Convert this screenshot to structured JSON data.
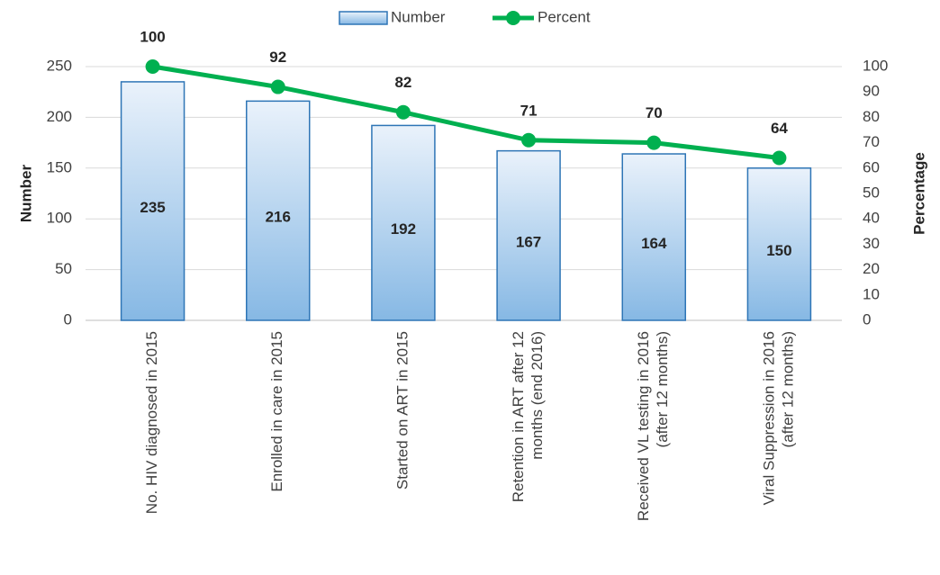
{
  "chart_data": {
    "type": "bar_line",
    "categories": [
      [
        "No. HIV diagnosed in 2015"
      ],
      [
        "Enrolled in care in 2015"
      ],
      [
        "Started on ART in 2015"
      ],
      [
        "Retention in ART after 12",
        "months (end 2016)"
      ],
      [
        "Received VL testing in 2016",
        "(after 12 months)"
      ],
      [
        "Viral Suppression in 2016",
        "(after 12 months)"
      ]
    ],
    "series": [
      {
        "name": "Number",
        "color": "#5b9bd5",
        "values": [
          235,
          216,
          192,
          167,
          164,
          150
        ]
      },
      {
        "name": "Percent",
        "color": "#00b050",
        "axis": "y2",
        "values": [
          100,
          92,
          82,
          71,
          70,
          64
        ]
      }
    ],
    "ylabel": "Number",
    "y2label": "Percentage",
    "ylim": [
      0,
      250
    ],
    "yticks": [
      0,
      50,
      100,
      150,
      200,
      250
    ],
    "y2lim": [
      0,
      100
    ],
    "y2ticks": [
      0,
      10,
      20,
      30,
      40,
      50,
      60,
      70,
      80,
      90,
      100
    ],
    "grid": true,
    "legend": "top"
  }
}
